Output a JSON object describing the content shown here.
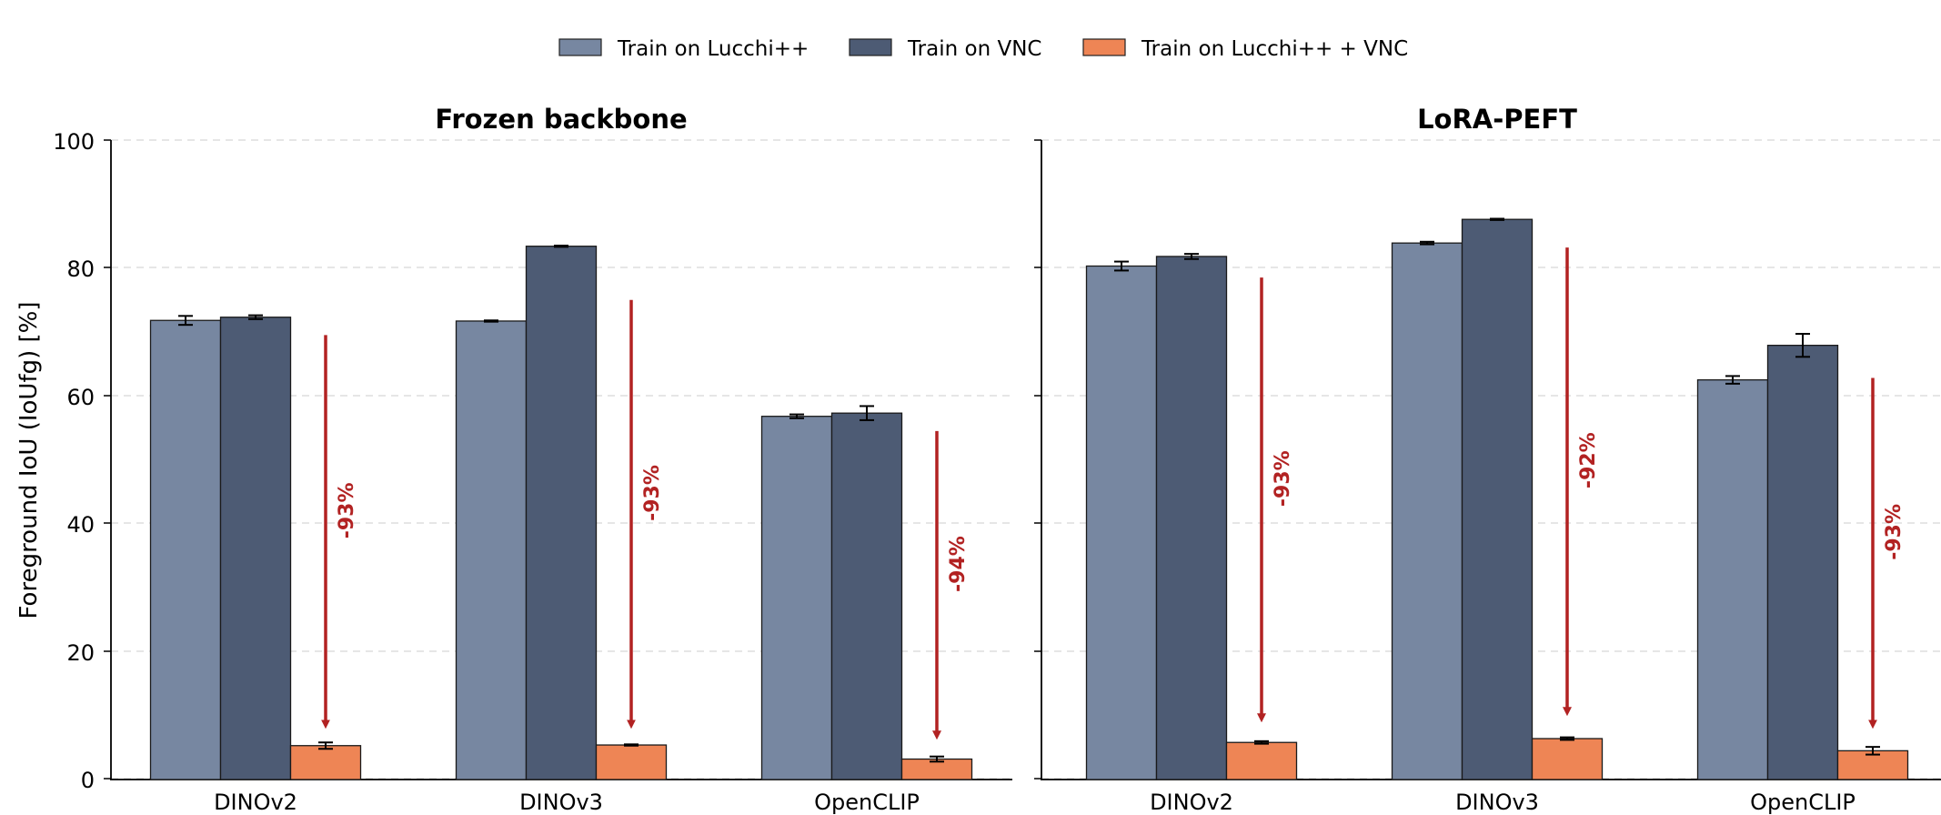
{
  "chart_data": {
    "type": "bar",
    "ylabel": "Foreground IoU (IoUfg) [%]",
    "ylim": [
      0,
      100
    ],
    "yticks": [
      "0",
      "20",
      "40",
      "60",
      "80",
      "100"
    ],
    "grid": "horizontal dashed",
    "legend": {
      "placement": "top-center",
      "entries": [
        "Train on Lucchi++",
        "Train on VNC",
        "Train on Lucchi++ + VNC"
      ]
    },
    "colors": {
      "Train on Lucchi++": "#7787a1",
      "Train on VNC": "#4d5b74",
      "Train on Lucchi++ + VNC": "#ee8555",
      "arrow": "#b22222"
    },
    "panels": [
      {
        "title": "Frozen backbone",
        "categories": [
          "DINOv2",
          "DINOv3",
          "OpenCLIP"
        ],
        "series": [
          {
            "name": "Train on Lucchi++",
            "values": [
              71.8,
              71.7,
              56.8
            ],
            "errors": [
              0.7,
              0.1,
              0.3
            ]
          },
          {
            "name": "Train on VNC",
            "values": [
              72.3,
              83.4,
              57.3
            ],
            "errors": [
              0.3,
              0.1,
              1.1
            ]
          },
          {
            "name": "Train on Lucchi++ + VNC",
            "values": [
              5.3,
              5.4,
              3.2
            ],
            "errors": [
              0.5,
              0.1,
              0.4
            ]
          }
        ],
        "drops": [
          {
            "label": "-93%",
            "from": 69.5,
            "to": 7.5
          },
          {
            "label": "-93%",
            "from": 75.0,
            "to": 7.5
          },
          {
            "label": "-94%",
            "from": 54.5,
            "to": 5.8
          }
        ]
      },
      {
        "title": "LoRA-PEFT",
        "categories": [
          "DINOv2",
          "DINOv3",
          "OpenCLIP"
        ],
        "series": [
          {
            "name": "Train on Lucchi++",
            "values": [
              80.3,
              83.9,
              62.5
            ],
            "errors": [
              0.7,
              0.2,
              0.6
            ]
          },
          {
            "name": "Train on VNC",
            "values": [
              81.8,
              87.6,
              67.9
            ],
            "errors": [
              0.4,
              0.1,
              1.8
            ]
          },
          {
            "name": "Train on Lucchi++ + VNC",
            "values": [
              5.8,
              6.4,
              4.5
            ],
            "errors": [
              0.2,
              0.2,
              0.6
            ]
          }
        ],
        "drops": [
          {
            "label": "-93%",
            "from": 78.5,
            "to": 8.5
          },
          {
            "label": "-92%",
            "from": 83.2,
            "to": 9.5
          },
          {
            "label": "-93%",
            "from": 62.8,
            "to": 7.5
          }
        ]
      }
    ]
  }
}
